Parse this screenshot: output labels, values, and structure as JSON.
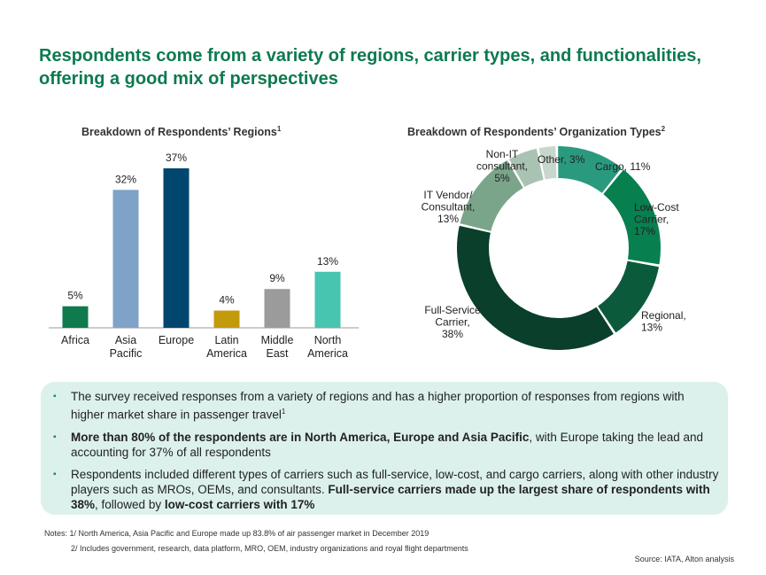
{
  "title": "Respondents come from a variety of regions, carrier types, and functionalities, offering a good mix of perspectives",
  "bar_title": "Breakdown of Respondents’ Regions",
  "bar_title_sup": "1",
  "donut_title": "Breakdown of Respondents’ Organization Types",
  "donut_title_sup": "2",
  "chart_data": [
    {
      "type": "bar",
      "title": "Breakdown of Respondents’ Regions",
      "categories": [
        [
          "Africa"
        ],
        [
          "Asia",
          "Pacific"
        ],
        [
          "Europe"
        ],
        [
          "Latin",
          "America"
        ],
        [
          "Middle",
          "East"
        ],
        [
          "North",
          "America"
        ]
      ],
      "values": [
        5,
        32,
        37,
        4,
        9,
        13
      ],
      "value_labels": [
        "5%",
        "32%",
        "37%",
        "4%",
        "9%",
        "13%"
      ],
      "colors": [
        "#0e7a4e",
        "#7fa2c8",
        "#00466e",
        "#c39a0c",
        "#9b9b9b",
        "#47c5b1"
      ],
      "ylim": [
        0,
        37
      ]
    },
    {
      "type": "pie",
      "title": "Breakdown of Respondents’ Organization Types",
      "donut": true,
      "slices": [
        {
          "label": [
            "Cargo, 11%"
          ],
          "value": 11,
          "color": "#2a9a7f"
        },
        {
          "label": [
            "Low-Cost",
            "Carrier,",
            "17%"
          ],
          "value": 17,
          "color": "#087f4f"
        },
        {
          "label": [
            "Regional,",
            "13%"
          ],
          "value": 13,
          "color": "#0b5a3c"
        },
        {
          "label": [
            "Full-Service",
            "Carrier,",
            "38%"
          ],
          "value": 38,
          "color": "#093f2b"
        },
        {
          "label": [
            "IT Vendor/",
            "Consultant,",
            "13%"
          ],
          "value": 13,
          "color": "#7aa58b"
        },
        {
          "label": [
            "Non-IT",
            "consultant,",
            "5%"
          ],
          "value": 5,
          "color": "#a9c3b3"
        },
        {
          "label": [
            "Other, 3%"
          ],
          "value": 3,
          "color": "#c9d6cd"
        }
      ]
    }
  ],
  "bullets": [
    {
      "segments": [
        {
          "text": "The survey received responses from a variety of regions and has a higher proportion of responses from regions with higher market share in passenger travel",
          "bold": false
        },
        {
          "text": "1",
          "bold": false,
          "sup": true
        }
      ]
    },
    {
      "segments": [
        {
          "text": "More than 80% of the respondents are in North America, Europe and Asia Pacific",
          "bold": true
        },
        {
          "text": ", with Europe taking the lead and accounting for 37% of all respondents",
          "bold": false
        }
      ]
    },
    {
      "segments": [
        {
          "text": "Respondents included different types of carriers such as full-service, low-cost, and cargo carriers, along with other industry players such as MROs, OEMs, and consultants. ",
          "bold": false
        },
        {
          "text": "Full-service carriers made up the largest share of respondents with 38%",
          "bold": true
        },
        {
          "text": ", followed by ",
          "bold": false
        },
        {
          "text": "low-cost carriers with 17%",
          "bold": true
        }
      ]
    }
  ],
  "notes": {
    "line1": "Notes: 1/ North America, Asia Pacific and Europe made up 83.8% of air passenger market in December 2019",
    "line2": "2/ Includes government, research, data platform, MRO, OEM, industry organizations and royal flight departments"
  },
  "source": "Source: IATA, Alton analysis"
}
